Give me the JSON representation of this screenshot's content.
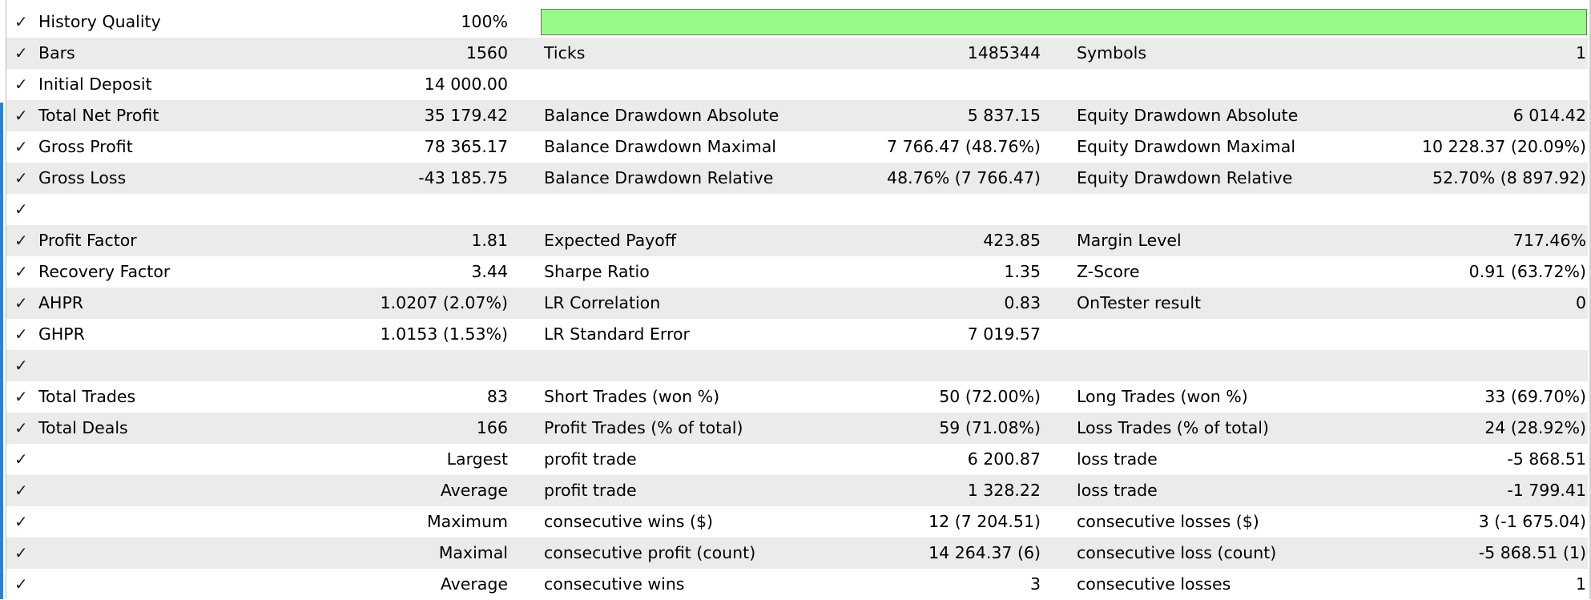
{
  "check_glyph": "✓",
  "history_quality": {
    "label": "History Quality",
    "value": "100%",
    "fill_percent": 100,
    "bar_color": "#98fa86"
  },
  "rows": [
    {
      "l1": "Bars",
      "v1": "1560",
      "l2": "Ticks",
      "v2": "1485344",
      "l3": "Symbols",
      "v3": "1"
    },
    {
      "l1": "Initial Deposit",
      "v1": "14 000.00",
      "l2": "",
      "v2": "",
      "l3": "",
      "v3": ""
    },
    {
      "l1": "Total Net Profit",
      "v1": "35 179.42",
      "l2": "Balance Drawdown Absolute",
      "v2": "5 837.15",
      "l3": "Equity Drawdown Absolute",
      "v3": "6 014.42"
    },
    {
      "l1": "Gross Profit",
      "v1": "78 365.17",
      "l2": "Balance Drawdown Maximal",
      "v2": "7 766.47 (48.76%)",
      "l3": "Equity Drawdown Maximal",
      "v3": "10 228.37 (20.09%)"
    },
    {
      "l1": "Gross Loss",
      "v1": "-43 185.75",
      "l2": "Balance Drawdown Relative",
      "v2": "48.76% (7 766.47)",
      "l3": "Equity Drawdown Relative",
      "v3": "52.70% (8 897.92)"
    },
    {
      "l1": "",
      "v1": "",
      "l2": "",
      "v2": "",
      "l3": "",
      "v3": ""
    },
    {
      "l1": "Profit Factor",
      "v1": "1.81",
      "l2": "Expected Payoff",
      "v2": "423.85",
      "l3": "Margin Level",
      "v3": "717.46%"
    },
    {
      "l1": "Recovery Factor",
      "v1": "3.44",
      "l2": "Sharpe Ratio",
      "v2": "1.35",
      "l3": "Z-Score",
      "v3": "0.91 (63.72%)"
    },
    {
      "l1": "AHPR",
      "v1": "1.0207 (2.07%)",
      "l2": "LR Correlation",
      "v2": "0.83",
      "l3": "OnTester result",
      "v3": "0"
    },
    {
      "l1": "GHPR",
      "v1": "1.0153 (1.53%)",
      "l2": "LR Standard Error",
      "v2": "7 019.57",
      "l3": "",
      "v3": ""
    },
    {
      "l1": "",
      "v1": "",
      "l2": "",
      "v2": "",
      "l3": "",
      "v3": ""
    },
    {
      "l1": "Total Trades",
      "v1": "83",
      "l2": "Short Trades (won %)",
      "v2": "50 (72.00%)",
      "l3": "Long Trades (won %)",
      "v3": "33 (69.70%)"
    },
    {
      "l1": "Total Deals",
      "v1": "166",
      "l2": "Profit Trades (% of total)",
      "v2": "59 (71.08%)",
      "l3": "Loss Trades (% of total)",
      "v3": "24 (28.92%)"
    },
    {
      "l1": "Largest",
      "v1": "",
      "l2": "profit trade",
      "v2": "6 200.87",
      "l3": "loss trade",
      "v3": "-5 868.51",
      "l1_align": "right"
    },
    {
      "l1": "Average",
      "v1": "",
      "l2": "profit trade",
      "v2": "1 328.22",
      "l3": "loss trade",
      "v3": "-1 799.41",
      "l1_align": "right"
    },
    {
      "l1": "Maximum",
      "v1": "",
      "l2": "consecutive wins ($)",
      "v2": "12 (7 204.51)",
      "l3": "consecutive losses ($)",
      "v3": "3 (-1 675.04)",
      "l1_align": "right"
    },
    {
      "l1": "Maximal",
      "v1": "",
      "l2": "consecutive profit (count)",
      "v2": "14 264.37 (6)",
      "l3": "consecutive loss (count)",
      "v3": "-5 868.51 (1)",
      "l1_align": "right"
    },
    {
      "l1": "Average",
      "v1": "",
      "l2": "consecutive wins",
      "v2": "3",
      "l3": "consecutive losses",
      "v3": "1",
      "l1_align": "right"
    }
  ]
}
